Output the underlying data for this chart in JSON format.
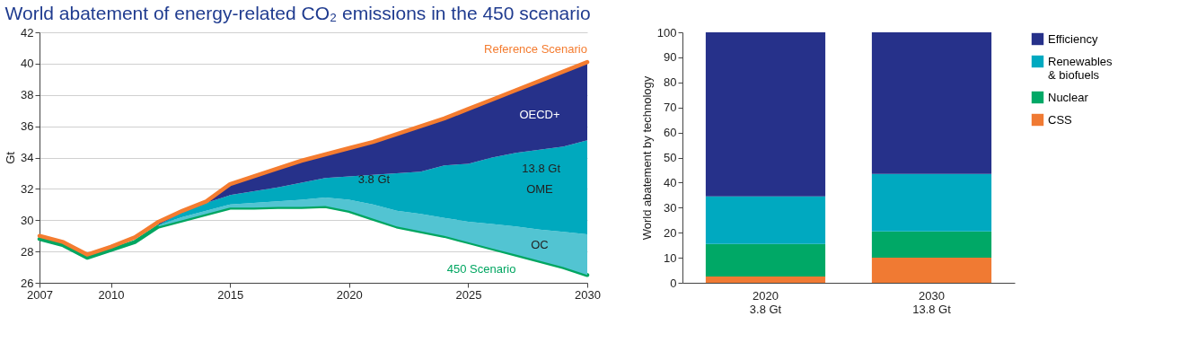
{
  "chart_data": [
    {
      "type": "area",
      "title": "World abatement of energy-related CO₂ emissions in the 450 scenario",
      "ylabel": "Gt",
      "x": [
        2007,
        2008,
        2009,
        2010,
        2011,
        2012,
        2013,
        2014,
        2015,
        2016,
        2017,
        2018,
        2019,
        2020,
        2021,
        2022,
        2023,
        2024,
        2025,
        2026,
        2027,
        2028,
        2029,
        2030
      ],
      "xlim": [
        2007,
        2030
      ],
      "xticks": [
        2007,
        2010,
        2015,
        2020,
        2025,
        2030
      ],
      "ylim": [
        26,
        42
      ],
      "yticks": [
        26,
        28,
        30,
        32,
        34,
        36,
        38,
        40,
        42
      ],
      "grid": "y",
      "series": [
        {
          "name": "450 Scenario",
          "type": "line",
          "color": "#00a661",
          "values": [
            28.8,
            28.4,
            27.6,
            28.1,
            28.6,
            29.6,
            30.0,
            30.4,
            30.8,
            30.8,
            30.85,
            30.85,
            30.9,
            30.6,
            30.1,
            29.6,
            29.3,
            29.0,
            28.6,
            28.2,
            27.8,
            27.4,
            27.0,
            26.5
          ]
        },
        {
          "name": "OC",
          "type": "area",
          "color": "#52c4d2",
          "x": [
            2012,
            2013,
            2014,
            2015,
            2016,
            2017,
            2018,
            2019,
            2020,
            2021,
            2022,
            2023,
            2024,
            2025,
            2026,
            2027,
            2028,
            2029,
            2030
          ],
          "values": [
            29.7,
            30.2,
            30.6,
            31.0,
            31.1,
            31.2,
            31.3,
            31.45,
            31.3,
            31.0,
            30.6,
            30.4,
            30.15,
            29.9,
            29.75,
            29.6,
            29.4,
            29.25,
            29.1
          ]
        },
        {
          "name": "OME",
          "type": "area",
          "color": "#00a9be",
          "x": [
            2012,
            2013,
            2014,
            2015,
            2016,
            2017,
            2018,
            2019,
            2020,
            2021,
            2022,
            2023,
            2024,
            2025,
            2026,
            2027,
            2028,
            2029,
            2030
          ],
          "values": [
            29.7,
            30.5,
            31.1,
            31.6,
            31.85,
            32.1,
            32.4,
            32.7,
            32.8,
            32.9,
            33.0,
            33.1,
            33.5,
            33.6,
            34.0,
            34.3,
            34.5,
            34.7,
            35.1
          ]
        },
        {
          "name": "OECD+",
          "type": "area",
          "color": "#26318a",
          "x": [
            2012,
            2013,
            2014,
            2015,
            2016,
            2017,
            2018,
            2019,
            2020,
            2021,
            2022,
            2023,
            2024,
            2025,
            2026,
            2027,
            2028,
            2029,
            2030
          ],
          "values": [
            29.9,
            30.6,
            31.2,
            32.3,
            32.8,
            33.3,
            33.8,
            34.2,
            34.6,
            35.0,
            35.5,
            36.0,
            36.5,
            37.1,
            37.7,
            38.3,
            38.9,
            39.5,
            40.1
          ]
        },
        {
          "name": "Reference Scenario",
          "type": "line",
          "color": "#f47c30",
          "values": [
            29.0,
            28.6,
            27.8,
            28.3,
            28.9,
            29.9,
            30.6,
            31.2,
            32.3,
            32.8,
            33.3,
            33.8,
            34.2,
            34.6,
            35.0,
            35.5,
            36.0,
            36.5,
            37.1,
            37.7,
            38.3,
            38.9,
            39.5,
            40.1
          ]
        }
      ],
      "annotations": [
        {
          "text": "3.8 Gt",
          "x": 2020,
          "y": 32.6
        },
        {
          "text": "13.8 Gt",
          "x": 2030,
          "y": 33.3
        }
      ]
    },
    {
      "type": "bar",
      "stacked": true,
      "ylabel": "World abatement by technology",
      "categories": [
        "2020\n3.8 Gt",
        "2030\n13.8 Gt"
      ],
      "ylim": [
        0,
        100
      ],
      "yticks": [
        0,
        10,
        20,
        30,
        40,
        50,
        60,
        70,
        80,
        90,
        100
      ],
      "grid": false,
      "legend": "right",
      "series": [
        {
          "name": "CSS",
          "color": "#f07a33",
          "values": [
            2.5,
            10
          ]
        },
        {
          "name": "Nuclear",
          "color": "#00a866",
          "values": [
            13,
            10.5
          ]
        },
        {
          "name": "Renewables\n& biofuels",
          "color": "#00a9c0",
          "values": [
            19,
            23
          ]
        },
        {
          "name": "Efficiency",
          "color": "#26318a",
          "values": [
            65.5,
            56.5
          ]
        }
      ]
    }
  ]
}
